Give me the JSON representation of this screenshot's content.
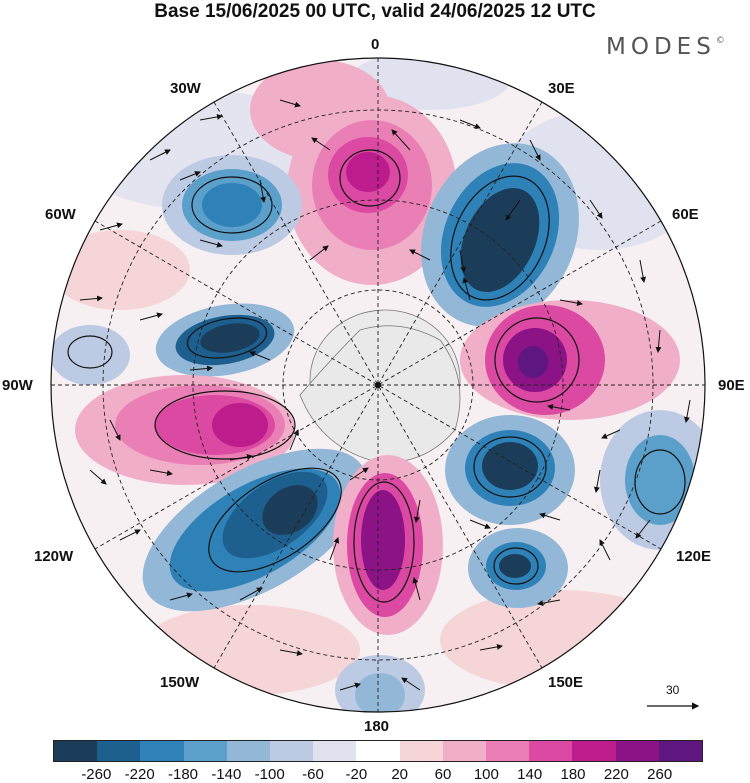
{
  "title": "Base 15/06/2025 00 UTC, valid 24/06/2025 12 UTC",
  "brand": "MODES",
  "brand_mark": "©",
  "longitude_labels": {
    "top": "0",
    "top_left": "30W",
    "top_right": "30E",
    "upper_left": "60W",
    "upper_right": "60E",
    "left": "90W",
    "right": "90E",
    "lower_left": "120W",
    "lower_right": "120E",
    "bottom_left": "150W",
    "bottom_right": "150E",
    "bottom": "180"
  },
  "reference_vector": {
    "label": "30"
  },
  "colorbar": {
    "labels": [
      "-260",
      "-220",
      "-180",
      "-140",
      "-100",
      "-60",
      "-20",
      "20",
      "60",
      "100",
      "140",
      "180",
      "220",
      "260"
    ],
    "colors": [
      "#1b3d5a",
      "#1d5f8f",
      "#2f82b8",
      "#5b9fcb",
      "#93b7d7",
      "#bccbe3",
      "#e1e2ef",
      "#ffffff",
      "#f6d5d8",
      "#f1aec8",
      "#ea7fb6",
      "#dc49a2",
      "#bd1d8c",
      "#8c1386",
      "#5e1680"
    ]
  },
  "map": {
    "projection": "south-polar-stereographic",
    "field": "geopotential height anomaly with wind vectors",
    "colors": {
      "neg_strong": "#1b3d5a",
      "neg_mid": "#2f82b8",
      "neg_weak": "#93b7d7",
      "neg_faint": "#e1e2ef",
      "pos_faint": "#f6d5d8",
      "pos_weak": "#f1aec8",
      "pos_mid": "#dc49a2",
      "pos_strong": "#8c1386",
      "land": "#ebebeb"
    }
  }
}
